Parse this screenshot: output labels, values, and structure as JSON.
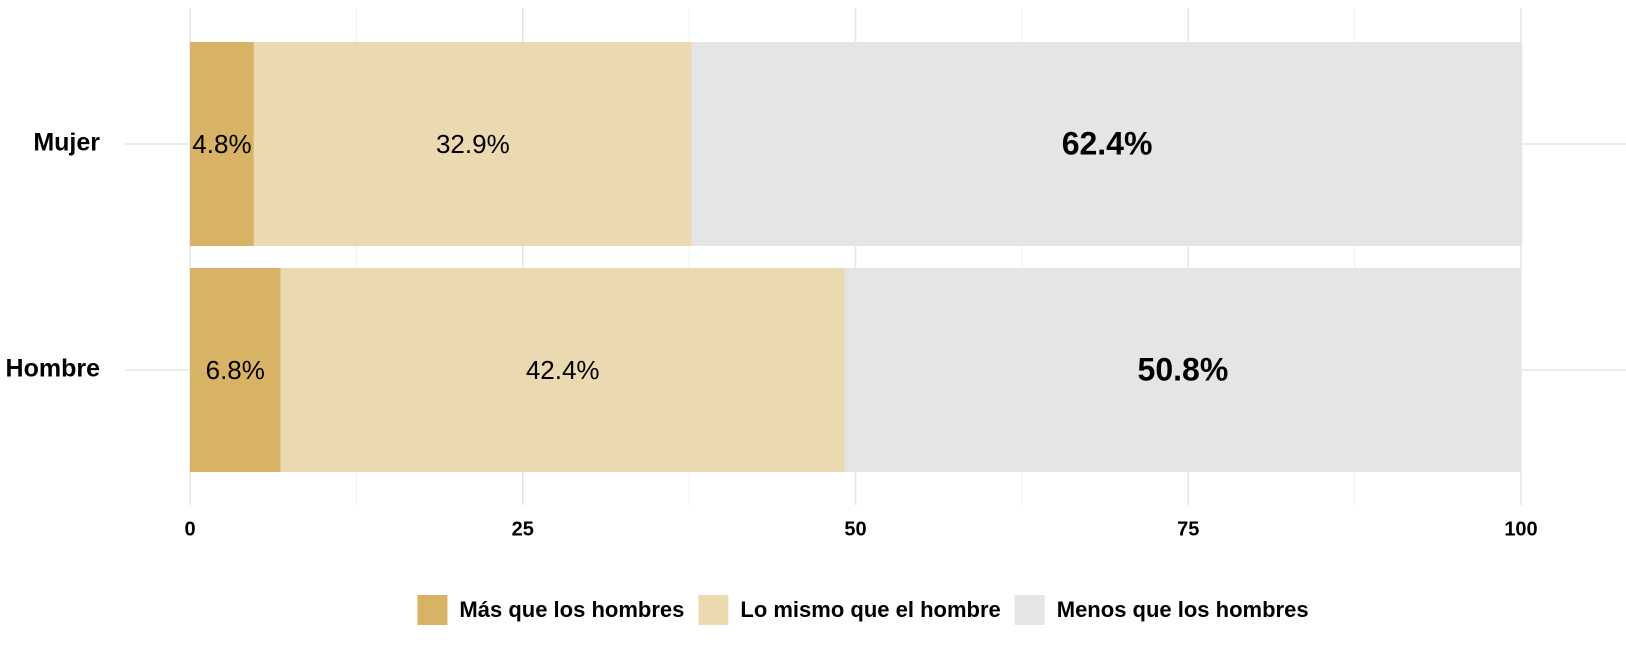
{
  "chart_data": {
    "type": "stacked_barh",
    "categories": [
      "Mujer",
      "Hombre"
    ],
    "series": [
      {
        "name": "Más que los hombres",
        "color": "#d8b365",
        "values": [
          4.8,
          6.8
        ],
        "value_labels": [
          "4.8%",
          "6.8%"
        ],
        "label_bold": false
      },
      {
        "name": "Lo mismo que el hombre",
        "color": "#ebd9b2",
        "values": [
          32.9,
          42.4
        ],
        "value_labels": [
          "32.9%",
          "42.4%"
        ],
        "label_bold": false
      },
      {
        "name": "Menos que los hombres",
        "color": "#e5e5e5",
        "values": [
          62.4,
          50.8
        ],
        "value_labels": [
          "62.4%",
          "50.8%"
        ],
        "label_bold": true
      }
    ],
    "xlim": [
      0,
      100
    ],
    "xticks": [
      0,
      25,
      50,
      75,
      100
    ],
    "xticks_minor": [
      12.5,
      37.5,
      62.5,
      87.5
    ],
    "grid": true,
    "legend": "bottom"
  }
}
